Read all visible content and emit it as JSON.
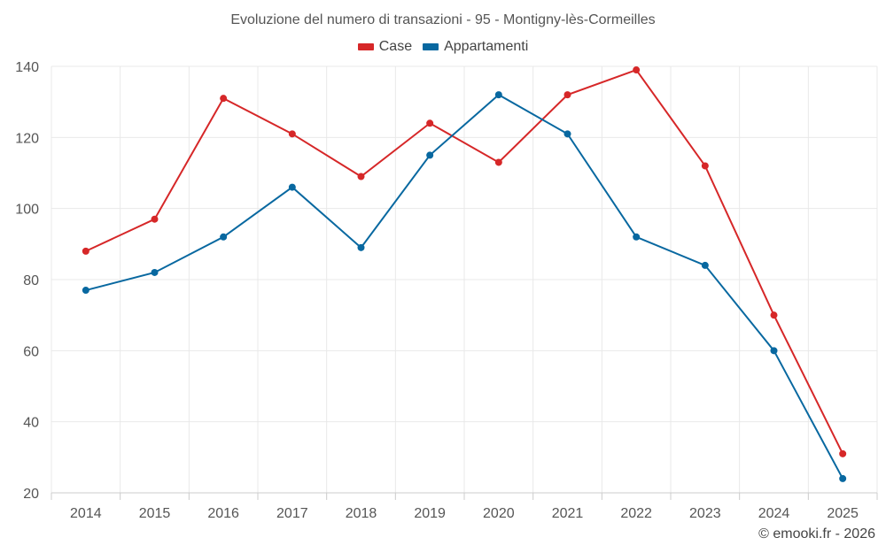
{
  "chart_data": {
    "type": "line",
    "title": "Evoluzione del numero di transazioni - 95 - Montigny-lès-Cormeilles",
    "categories": [
      "2014",
      "2015",
      "2016",
      "2017",
      "2018",
      "2019",
      "2020",
      "2021",
      "2022",
      "2023",
      "2024",
      "2025"
    ],
    "series": [
      {
        "name": "Case",
        "color": "#d62728",
        "values": [
          88,
          97,
          131,
          121,
          109,
          124,
          113,
          132,
          139,
          112,
          70,
          31
        ]
      },
      {
        "name": "Appartamenti",
        "color": "#0868a0",
        "values": [
          77,
          82,
          92,
          106,
          89,
          115,
          132,
          121,
          92,
          84,
          60,
          24
        ]
      }
    ],
    "ylim": [
      20,
      140
    ],
    "yticks": [
      20,
      40,
      60,
      80,
      100,
      120,
      140
    ],
    "ytick_labels": [
      "20",
      "40",
      "60",
      "80",
      "100",
      "120",
      "140"
    ],
    "xlabel": "",
    "ylabel": "",
    "grid": true,
    "legend_position": "top-center"
  },
  "footer": "© emooki.fr - 2026"
}
